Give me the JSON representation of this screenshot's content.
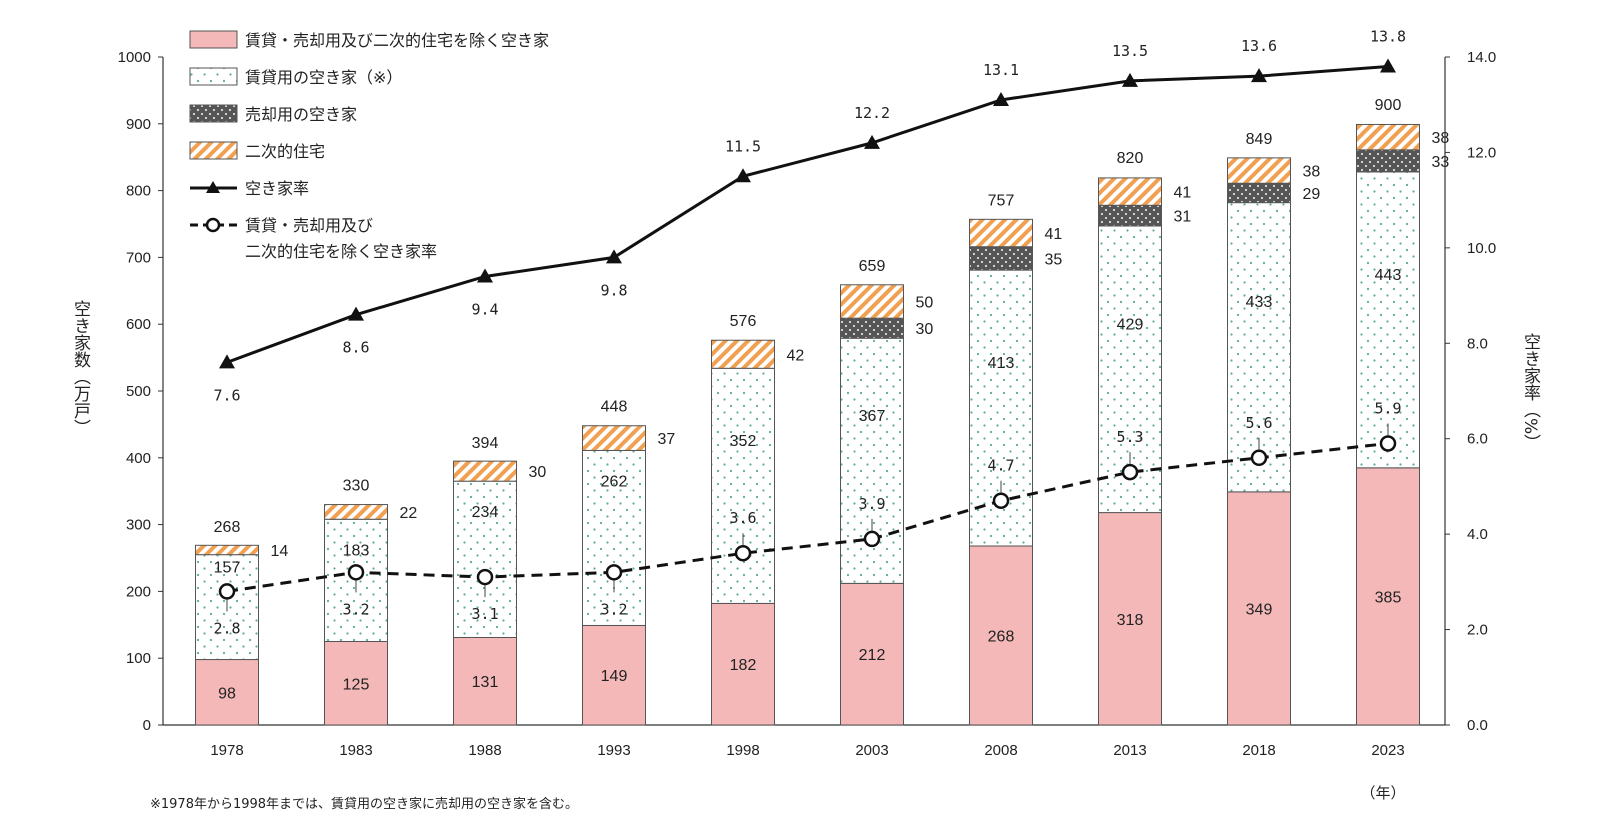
{
  "chart_data": {
    "type": "bar",
    "stacked": true,
    "categories": [
      "1978",
      "1983",
      "1988",
      "1993",
      "1998",
      "2003",
      "2008",
      "2013",
      "2018",
      "2023"
    ],
    "totals": [
      268,
      330,
      394,
      448,
      576,
      659,
      757,
      820,
      849,
      900
    ],
    "series": [
      {
        "name": "賃貸・売却用及び二次的住宅を除く空き家",
        "key": "other",
        "color": "#f4b8b8",
        "values": [
          98,
          125,
          131,
          149,
          182,
          212,
          268,
          318,
          349,
          385
        ]
      },
      {
        "name": "賃貸用の空き家（※）",
        "key": "rental",
        "color": "#ffffff",
        "values": [
          157,
          183,
          234,
          262,
          352,
          367,
          413,
          429,
          433,
          443
        ]
      },
      {
        "name": "売却用の空き家",
        "key": "sale",
        "color": "#555555",
        "values": [
          null,
          null,
          null,
          null,
          null,
          30,
          35,
          31,
          29,
          33
        ]
      },
      {
        "name": "二次的住宅",
        "key": "secondary",
        "color": "#f0a050",
        "values": [
          14,
          22,
          30,
          37,
          42,
          50,
          41,
          41,
          38,
          38
        ]
      }
    ],
    "lines": [
      {
        "name": "空き家率",
        "style": "solid-triangle",
        "values": [
          7.6,
          8.6,
          9.4,
          9.8,
          11.5,
          12.2,
          13.1,
          13.5,
          13.6,
          13.8
        ],
        "labels": [
          "7.6",
          "8.6",
          "9.4",
          "9.8",
          "11.5",
          "12.2",
          "13.1",
          "13.5",
          "13.6",
          "13.8"
        ]
      },
      {
        "name": "賃貸・売却用及び\n二次的住宅を除く空き家率",
        "name_lines": [
          "賃貸・売却用及び",
          "二次的住宅を除く空き家率"
        ],
        "style": "dashed-circle",
        "values": [
          2.8,
          3.2,
          3.1,
          3.2,
          3.6,
          3.9,
          4.7,
          5.3,
          5.6,
          5.9
        ],
        "labels": [
          "2.8",
          "3.2",
          "3.1",
          "3.2",
          "3.6",
          "3.9",
          "4.7",
          "5.3",
          "5.6",
          "5.9"
        ]
      }
    ],
    "ylabel_left": "空き家数（万戸）",
    "ylabel_right": "空き家率（%）",
    "ylim_left": [
      0,
      1000
    ],
    "ylim_right": [
      0,
      14
    ],
    "yticks_left": [
      0,
      100,
      200,
      300,
      400,
      500,
      600,
      700,
      800,
      900,
      1000
    ],
    "yticks_right": [
      "0.0",
      "2.0",
      "4.0",
      "6.0",
      "8.0",
      "10.0",
      "12.0",
      "14.0"
    ],
    "x_unit": "（年）",
    "footnote": "※1978年から1998年までは、賃貸用の空き家に売却用の空き家を含む。",
    "legend_position": "top-left",
    "grid": false
  }
}
